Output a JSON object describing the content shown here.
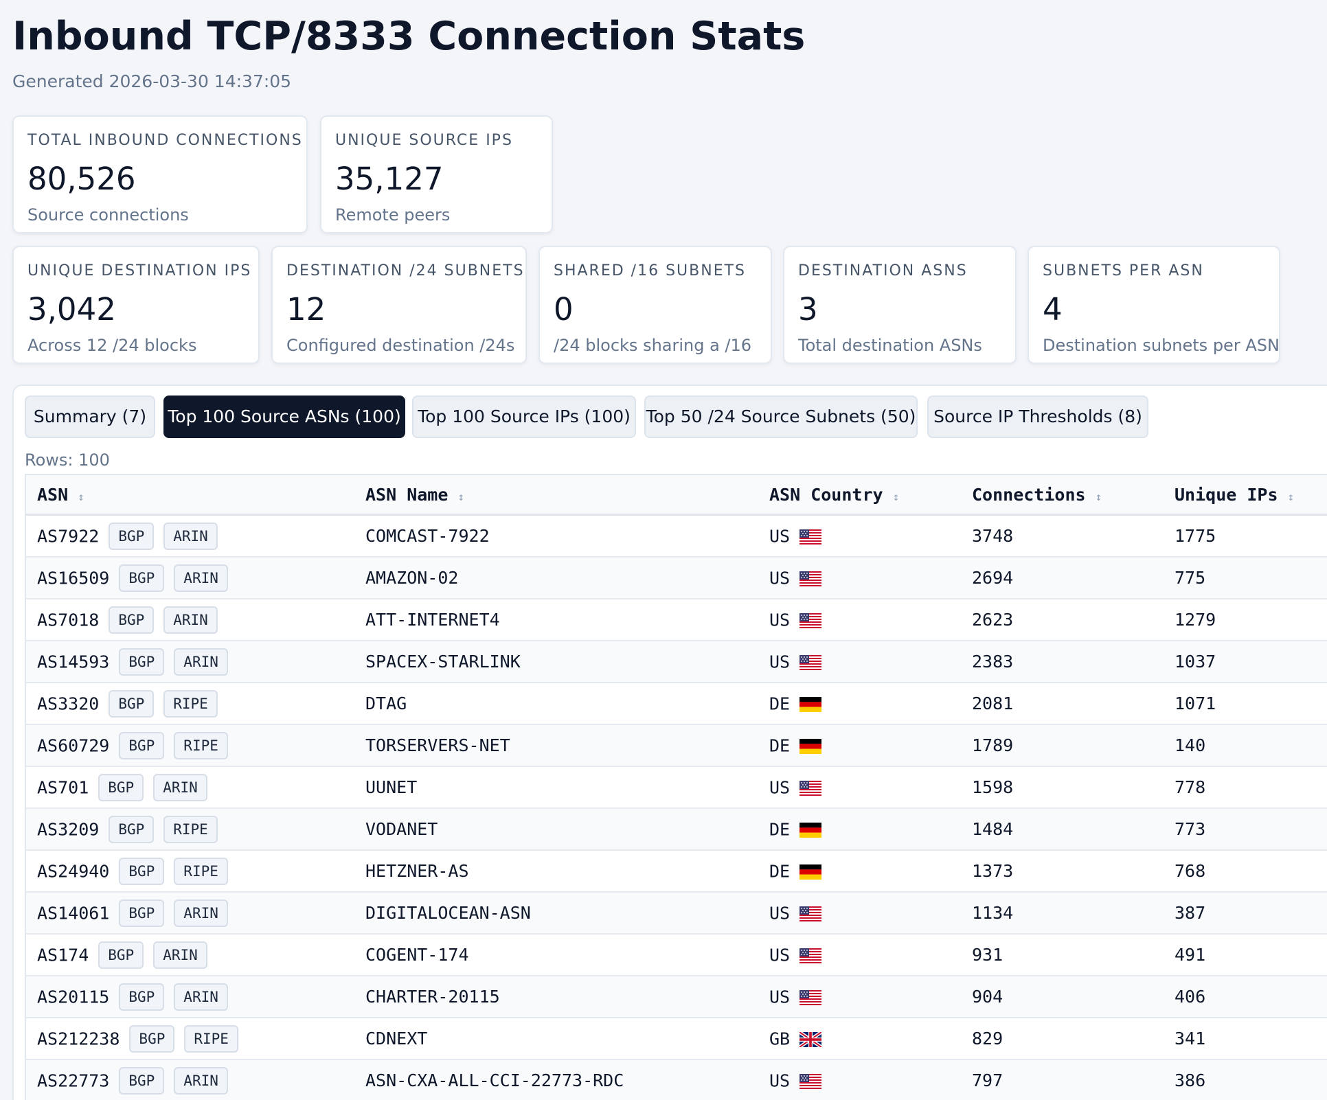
{
  "page": {
    "title": "Inbound TCP/8333 Connection Stats",
    "generated": "Generated 2026-03-30 14:37:05"
  },
  "cards": [
    {
      "label": "TOTAL INBOUND CONNECTIONS",
      "value": "80,526",
      "sub": "Source connections"
    },
    {
      "label": "UNIQUE SOURCE IPS",
      "value": "35,127",
      "sub": "Remote peers"
    },
    {
      "label": "UNIQUE DESTINATION IPS",
      "value": "3,042",
      "sub": "Across 12 /24 blocks"
    },
    {
      "label": "DESTINATION /24 SUBNETS",
      "value": "12",
      "sub": "Configured destination /24s"
    },
    {
      "label": "SHARED /16 SUBNETS",
      "value": "0",
      "sub": "/24 blocks sharing a /16"
    },
    {
      "label": "DESTINATION ASNS",
      "value": "3",
      "sub": "Total destination ASNs"
    },
    {
      "label": "SUBNETS PER ASN",
      "value": "4",
      "sub": "Destination subnets per ASN"
    }
  ],
  "tabs": [
    {
      "label": "Summary (7)",
      "active": false
    },
    {
      "label": "Top 100 Source ASNs (100)",
      "active": true
    },
    {
      "label": "Top 100 Source IPs (100)",
      "active": false
    },
    {
      "label": "Top 50 /24 Source Subnets (50)",
      "active": false
    },
    {
      "label": "Source IP Thresholds (8)",
      "active": false
    }
  ],
  "table": {
    "rows_label": "Rows: 100",
    "columns": [
      "ASN",
      "ASN Name",
      "ASN Country",
      "Connections",
      "Unique IPs"
    ],
    "sort_icon": "sort-icon",
    "rows": [
      {
        "asn": "AS7922",
        "badges": [
          "BGP",
          "ARIN"
        ],
        "name": "COMCAST-7922",
        "country": "US",
        "flag": "us-flag-icon",
        "connections": "3748",
        "unique_ips": "1775"
      },
      {
        "asn": "AS16509",
        "badges": [
          "BGP",
          "ARIN"
        ],
        "name": "AMAZON-02",
        "country": "US",
        "flag": "us-flag-icon",
        "connections": "2694",
        "unique_ips": "775"
      },
      {
        "asn": "AS7018",
        "badges": [
          "BGP",
          "ARIN"
        ],
        "name": "ATT-INTERNET4",
        "country": "US",
        "flag": "us-flag-icon",
        "connections": "2623",
        "unique_ips": "1279"
      },
      {
        "asn": "AS14593",
        "badges": [
          "BGP",
          "ARIN"
        ],
        "name": "SPACEX-STARLINK",
        "country": "US",
        "flag": "us-flag-icon",
        "connections": "2383",
        "unique_ips": "1037"
      },
      {
        "asn": "AS3320",
        "badges": [
          "BGP",
          "RIPE"
        ],
        "name": "DTAG",
        "country": "DE",
        "flag": "de-flag-icon",
        "connections": "2081",
        "unique_ips": "1071"
      },
      {
        "asn": "AS60729",
        "badges": [
          "BGP",
          "RIPE"
        ],
        "name": "TORSERVERS-NET",
        "country": "DE",
        "flag": "de-flag-icon",
        "connections": "1789",
        "unique_ips": "140"
      },
      {
        "asn": "AS701",
        "badges": [
          "BGP",
          "ARIN"
        ],
        "name": "UUNET",
        "country": "US",
        "flag": "us-flag-icon",
        "connections": "1598",
        "unique_ips": "778"
      },
      {
        "asn": "AS3209",
        "badges": [
          "BGP",
          "RIPE"
        ],
        "name": "VODANET",
        "country": "DE",
        "flag": "de-flag-icon",
        "connections": "1484",
        "unique_ips": "773"
      },
      {
        "asn": "AS24940",
        "badges": [
          "BGP",
          "RIPE"
        ],
        "name": "HETZNER-AS",
        "country": "DE",
        "flag": "de-flag-icon",
        "connections": "1373",
        "unique_ips": "768"
      },
      {
        "asn": "AS14061",
        "badges": [
          "BGP",
          "ARIN"
        ],
        "name": "DIGITALOCEAN-ASN",
        "country": "US",
        "flag": "us-flag-icon",
        "connections": "1134",
        "unique_ips": "387"
      },
      {
        "asn": "AS174",
        "badges": [
          "BGP",
          "ARIN"
        ],
        "name": "COGENT-174",
        "country": "US",
        "flag": "us-flag-icon",
        "connections": "931",
        "unique_ips": "491"
      },
      {
        "asn": "AS20115",
        "badges": [
          "BGP",
          "ARIN"
        ],
        "name": "CHARTER-20115",
        "country": "US",
        "flag": "us-flag-icon",
        "connections": "904",
        "unique_ips": "406"
      },
      {
        "asn": "AS212238",
        "badges": [
          "BGP",
          "RIPE"
        ],
        "name": "CDNEXT",
        "country": "GB",
        "flag": "gb-flag-icon",
        "connections": "829",
        "unique_ips": "341"
      },
      {
        "asn": "AS22773",
        "badges": [
          "BGP",
          "ARIN"
        ],
        "name": "ASN-CXA-ALL-CCI-22773-RDC",
        "country": "US",
        "flag": "us-flag-icon",
        "connections": "797",
        "unique_ips": "386"
      }
    ]
  }
}
